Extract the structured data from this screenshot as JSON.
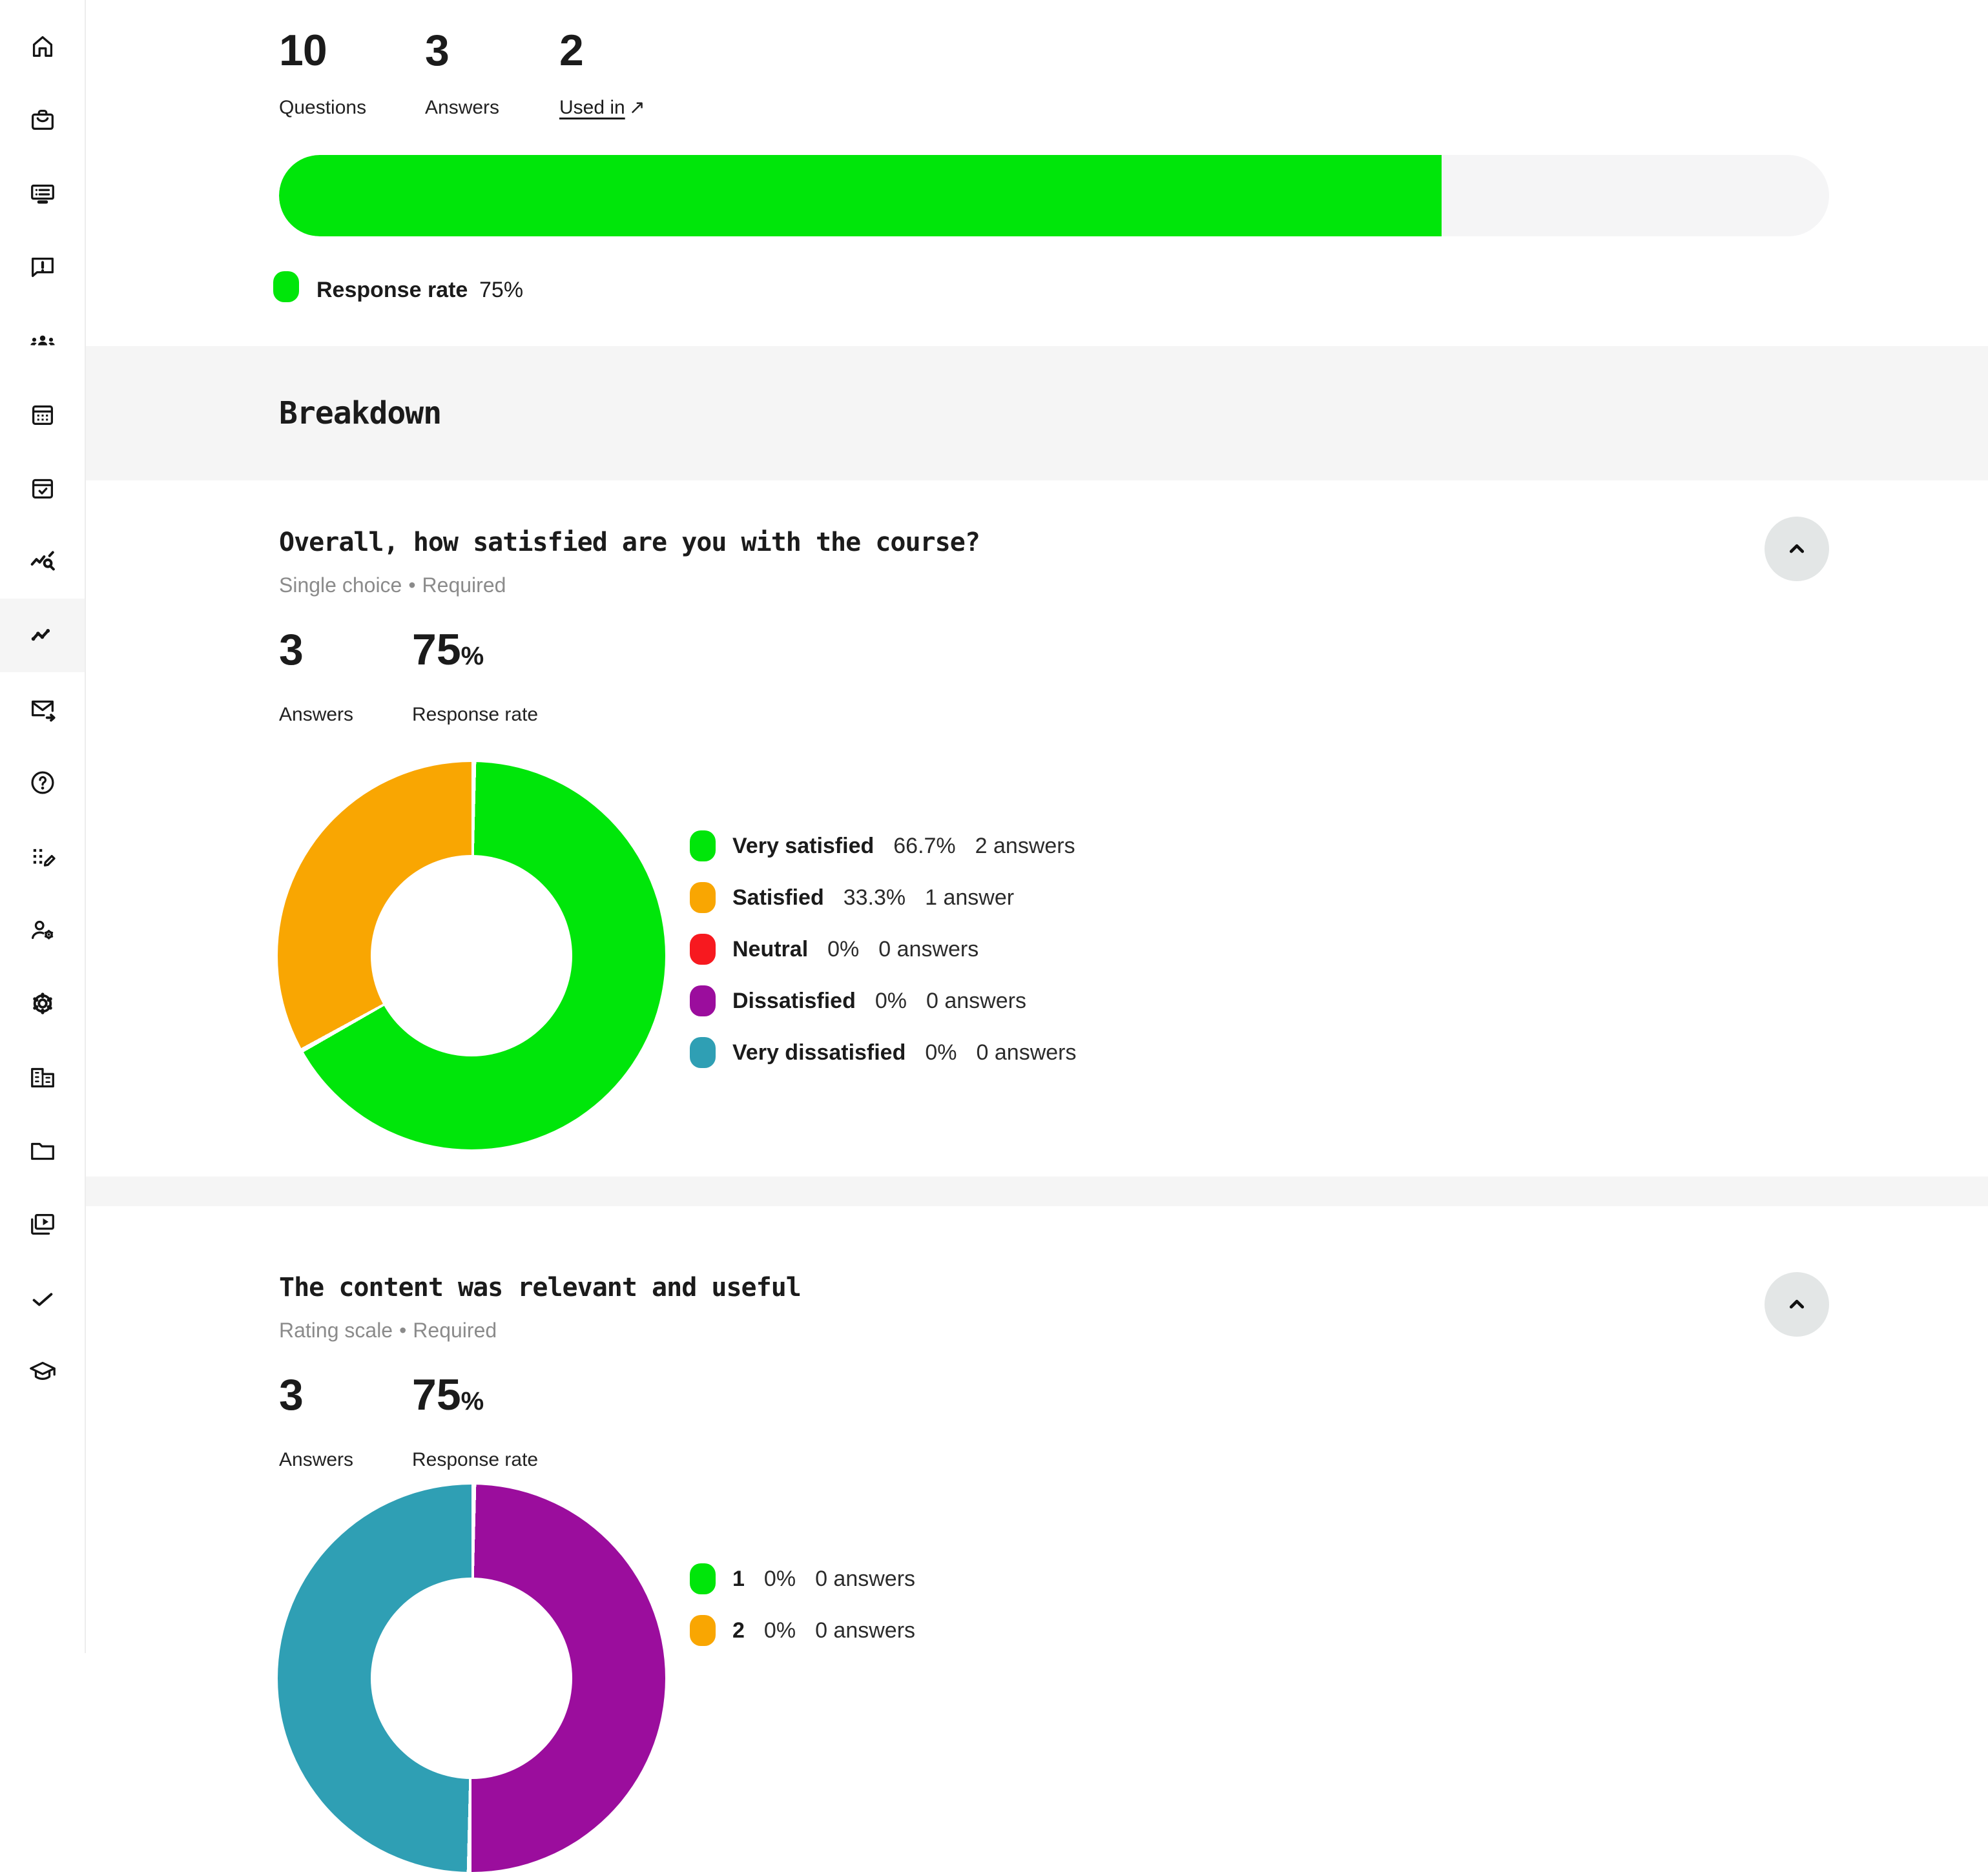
{
  "sidebar": {
    "items": [
      {
        "icon": "home-icon"
      },
      {
        "icon": "briefcase-icon"
      },
      {
        "icon": "posts-board-icon"
      },
      {
        "icon": "feedback-icon"
      },
      {
        "icon": "groups-icon"
      },
      {
        "icon": "calendar-icon"
      },
      {
        "icon": "event-check-icon"
      },
      {
        "icon": "query-stats-icon"
      },
      {
        "icon": "trending-line-icon",
        "active": true
      },
      {
        "icon": "forward-mail-icon"
      },
      {
        "icon": "help-icon"
      },
      {
        "icon": "apps-edit-icon"
      },
      {
        "icon": "manage-account-icon"
      },
      {
        "icon": "settings-gear-icon"
      },
      {
        "icon": "building-icon"
      },
      {
        "icon": "folder-icon"
      },
      {
        "icon": "video-library-icon"
      },
      {
        "icon": "checkmark-icon"
      },
      {
        "icon": "graduation-cap-icon"
      }
    ]
  },
  "header_stats": {
    "questions": {
      "value": "10",
      "label": "Questions"
    },
    "answers": {
      "value": "3",
      "label": "Answers"
    },
    "used_in": {
      "value": "2",
      "label": "Used in",
      "arrow": "↗"
    }
  },
  "response_rate": {
    "label": "Response rate",
    "value": "75%",
    "percent": 75,
    "bar_color": "#00E60A",
    "track_color": "#F5F5F6"
  },
  "breakdown": {
    "title": "Breakdown"
  },
  "questions": [
    {
      "title": "Overall, how satisfied are you with the course?",
      "type": "Single choice",
      "dot": "•",
      "required": "Required",
      "answers_value": "3",
      "answers_label": "Answers",
      "rate_value": "75",
      "rate_suffix": "%",
      "rate_label": "Response rate"
    },
    {
      "title": "The content was relevant and useful",
      "type": "Rating scale",
      "dot": "•",
      "required": "Required",
      "answers_value": "3",
      "answers_label": "Answers",
      "rate_value": "75",
      "rate_suffix": "%",
      "rate_label": "Response rate"
    }
  ],
  "chart_data": [
    {
      "type": "pie",
      "subtype": "donut",
      "title": "Overall, how satisfied are you with the course?",
      "legend_position": "right",
      "segments": [
        {
          "label": "Very satisfied",
          "percent": 66.7,
          "pct_label": "66.7%",
          "answers": 2,
          "answers_label": "2 answers",
          "color": "#00E60A"
        },
        {
          "label": "Satisfied",
          "percent": 33.3,
          "pct_label": "33.3%",
          "answers": 1,
          "answers_label": "1 answer",
          "color": "#F9A602"
        },
        {
          "label": "Neutral",
          "percent": 0,
          "pct_label": "0%",
          "answers": 0,
          "answers_label": "0 answers",
          "color": "#F7191F"
        },
        {
          "label": "Dissatisfied",
          "percent": 0,
          "pct_label": "0%",
          "answers": 0,
          "answers_label": "0 answers",
          "color": "#9B0D9D"
        },
        {
          "label": "Very dissatisfied",
          "percent": 0,
          "pct_label": "0%",
          "answers": 0,
          "answers_label": "0 answers",
          "color": "#2F9FB4"
        }
      ],
      "arc": [
        {
          "color": "#00E60A",
          "percent": 66.7
        },
        {
          "color": "#F9A602",
          "percent": 33.3
        }
      ]
    },
    {
      "type": "pie",
      "subtype": "donut",
      "title": "The content was relevant and useful",
      "legend_position": "right",
      "segments": [
        {
          "label": "1",
          "percent": 0,
          "pct_label": "0%",
          "answers": 0,
          "answers_label": "0 answers",
          "color": "#00E60A"
        },
        {
          "label": "2",
          "percent": 0,
          "pct_label": "0%",
          "answers": 0,
          "answers_label": "0 answers",
          "color": "#F9A602"
        }
      ],
      "arc": [
        {
          "color": "#9B0D9D",
          "percent": 50
        },
        {
          "color": "#2F9FB4",
          "percent": 50
        }
      ]
    }
  ]
}
